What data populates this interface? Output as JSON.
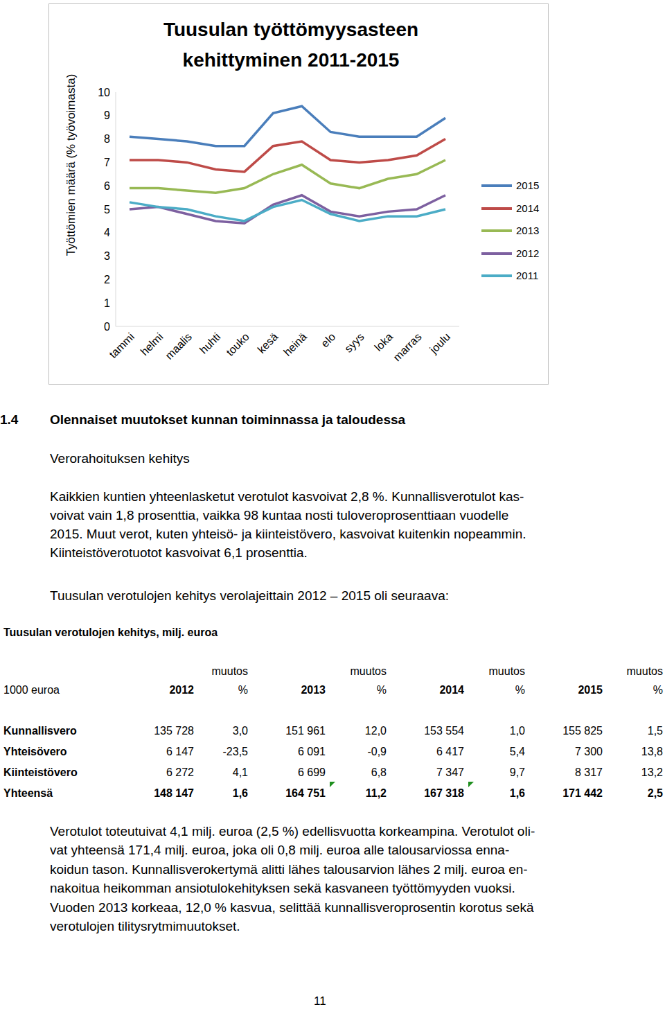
{
  "chart_data": {
    "type": "line",
    "title": "Tuusulan työttömyysasteen kehittyminen 2011-2015",
    "y_label": "Työttömien määrä (% työvoimasta)",
    "categories": [
      "tammi",
      "helmi",
      "maalis",
      "huhti",
      "touko",
      "kesä",
      "heinä",
      "elo",
      "syys",
      "loka",
      "marras",
      "joulu"
    ],
    "series": [
      {
        "name": "2015",
        "color": "#4a7ebb",
        "values": [
          8.1,
          8.0,
          7.9,
          7.7,
          7.7,
          9.1,
          9.4,
          8.3,
          8.1,
          8.1,
          8.1,
          8.9
        ]
      },
      {
        "name": "2014",
        "color": "#be4b48",
        "values": [
          7.1,
          7.1,
          7.0,
          6.7,
          6.6,
          7.7,
          7.9,
          7.1,
          7.0,
          7.1,
          7.3,
          8.0
        ]
      },
      {
        "name": "2013",
        "color": "#98b954",
        "values": [
          5.9,
          5.9,
          5.8,
          5.7,
          5.9,
          6.5,
          6.9,
          6.1,
          5.9,
          6.3,
          6.5,
          7.1
        ]
      },
      {
        "name": "2012",
        "color": "#7d60a0",
        "values": [
          5.0,
          5.1,
          4.8,
          4.5,
          4.4,
          5.2,
          5.6,
          4.9,
          4.7,
          4.9,
          5.0,
          5.6
        ]
      },
      {
        "name": "2011",
        "color": "#4bacc6",
        "values": [
          5.3,
          5.1,
          5.0,
          4.7,
          4.5,
          5.1,
          5.4,
          4.8,
          4.5,
          4.7,
          4.7,
          5.0
        ]
      }
    ],
    "ylim": [
      0,
      10
    ],
    "yticks": [
      0,
      1,
      2,
      3,
      4,
      5,
      6,
      7,
      8,
      9,
      10
    ],
    "grid": false,
    "legend": "right"
  },
  "section": {
    "number": "1.4",
    "title": "Olennaiset muutokset kunnan toiminnassa ja taloudessa"
  },
  "subheading": "Verorahoituksen kehitys",
  "paragraph1": [
    "Kaikkien kuntien yhteenlasketut verotulot kasvoivat 2,8 %. Kunnallisverotulot kas-",
    "voivat vain 1,8 prosenttia, vaikka 98 kuntaa nosti tuloveroprosenttiaan vuodelle",
    "2015. Muut verot, kuten yhteisö- ja kiinteistövero, kasvoivat kuitenkin nopeammin.",
    "Kiinteistöverotuotot kasvoivat 6,1 prosenttia."
  ],
  "paragraph2": [
    "Tuusulan verotulojen kehitys verolajeittain 2012 – 2015 oli seuraava:"
  ],
  "table": {
    "title": "Tuusulan verotulojen kehitys, milj. euroa",
    "stub_header": "1000 euroa",
    "columns": [
      [
        "2012"
      ],
      [
        "muutos",
        "%"
      ],
      [
        "2013"
      ],
      [
        "muutos",
        "%"
      ],
      [
        "2014"
      ],
      [
        "muutos",
        "%"
      ],
      [
        "2015"
      ],
      [
        "muutos",
        "%"
      ]
    ],
    "rows": [
      {
        "label": "Kunnallisvero",
        "cells": [
          "135 728",
          "3,0",
          "151 961",
          "12,0",
          "153 554",
          "1,0",
          "155 825",
          "1,5"
        ]
      },
      {
        "label": "Yhteisövero",
        "cells": [
          "6 147",
          "-23,5",
          "6 091",
          "-0,9",
          "6 417",
          "5,4",
          "7 300",
          "13,8"
        ]
      },
      {
        "label": "Kiinteistövero",
        "cells": [
          "6 272",
          "4,1",
          "6 699",
          "6,8",
          "7 347",
          "9,7",
          "8 317",
          "13,2"
        ]
      }
    ],
    "total_row": {
      "label": "Yhteensä",
      "cells": [
        "148 147",
        "1,6",
        "164 751",
        "11,2",
        "167 318",
        "1,6",
        "171 442",
        "2,5"
      ]
    }
  },
  "paragraph3": [
    "Verotulot toteutuivat 4,1 milj. euroa (2,5 %) edellisvuotta korkeampina. Verotulot oli-",
    "vat yhteensä 171,4 milj. euroa, joka oli 0,8 milj. euroa alle talousarviossa enna-",
    "koidun tason. Kunnallisverokertymä alitti lähes talousarvion lähes 2 milj. euroa en-",
    "nakoitua heikomman ansiotulokehityksen sekä kasvaneen työttömyyden vuoksi.",
    "Vuoden 2013 korkeaa, 12,0 % kasvua, selittää kunnallisveroprosentin korotus sekä",
    "verotulojen tilitysrytmimuutokset."
  ],
  "page_number": "11"
}
